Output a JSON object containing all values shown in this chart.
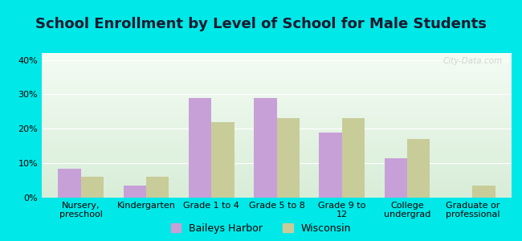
{
  "title": "School Enrollment by Level of School for Male Students",
  "categories": [
    "Nursery,\npreschool",
    "Kindergarten",
    "Grade 1 to 4",
    "Grade 5 to 8",
    "Grade 9 to\n12",
    "College\nundergrad",
    "Graduate or\nprofessional"
  ],
  "baileys_harbor": [
    8.5,
    3.5,
    29.0,
    29.0,
    19.0,
    11.5,
    0.0
  ],
  "wisconsin": [
    6.0,
    6.0,
    22.0,
    23.0,
    23.0,
    17.0,
    3.5
  ],
  "bar_color_baileys": "#c8a0d8",
  "bar_color_wisconsin": "#c8cc99",
  "background_outer": "#00e8e8",
  "background_inner_top": "#d8edd8",
  "background_inner_bottom": "#f4fcf4",
  "ylim": [
    0,
    42
  ],
  "yticks": [
    0,
    10,
    20,
    30,
    40
  ],
  "legend_baileys": "Baileys Harbor",
  "legend_wisconsin": "Wisconsin",
  "title_fontsize": 13,
  "tick_fontsize": 8,
  "bar_width": 0.35
}
